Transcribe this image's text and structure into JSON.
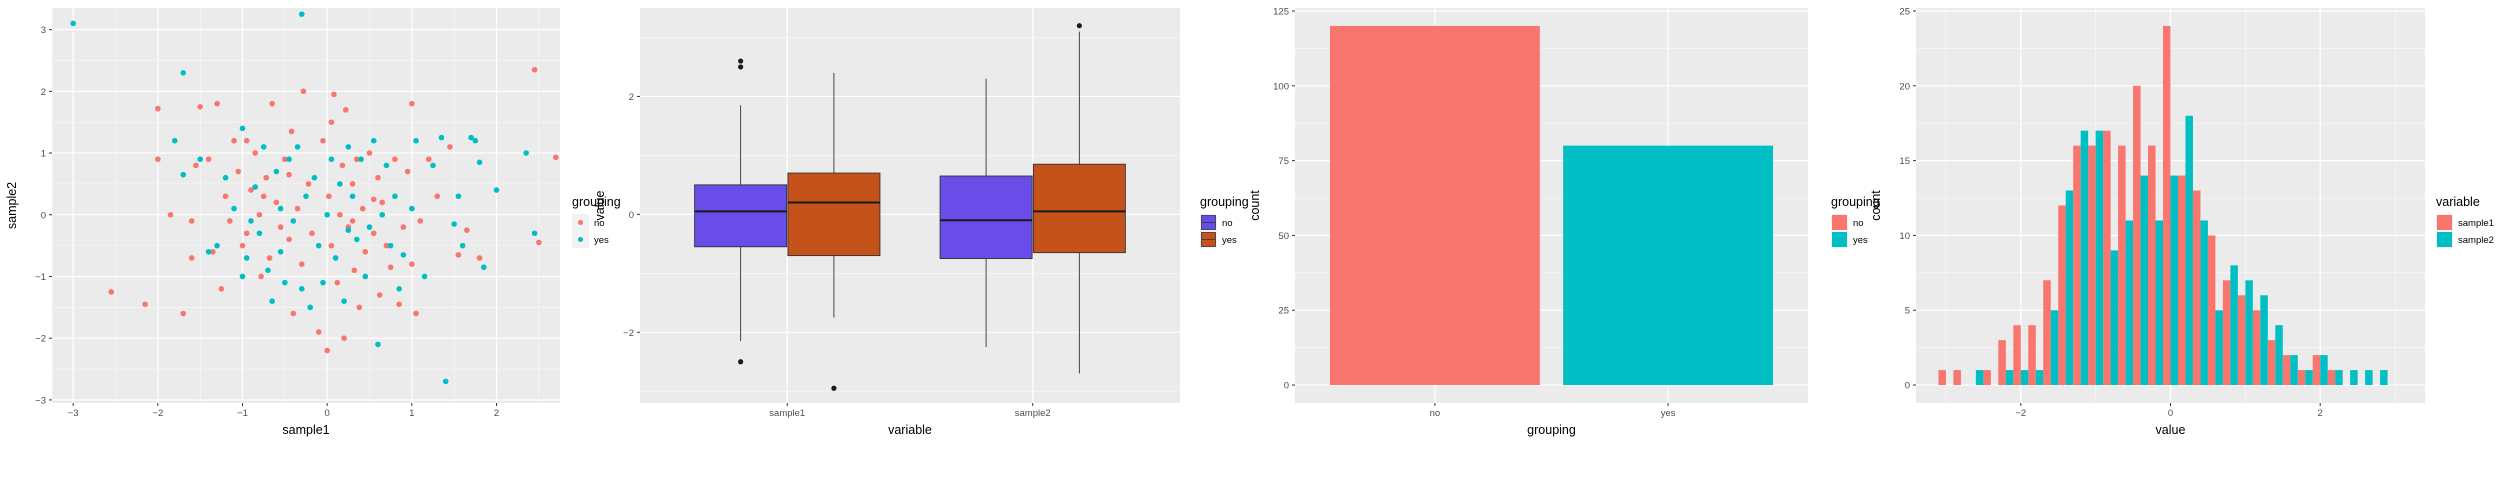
{
  "chart_data": [
    {
      "type": "scatter",
      "xlabel": "sample1",
      "ylabel": "sample2",
      "xlim": [
        -3.25,
        2.75
      ],
      "ylim": [
        -3.05,
        3.35
      ],
      "x_ticks": [
        -3,
        -2,
        -1,
        0,
        1,
        2
      ],
      "y_ticks": [
        -3,
        -2,
        -1,
        0,
        1,
        2,
        3
      ],
      "legend_title": "grouping",
      "legend_position": "right",
      "grid": true,
      "series": [
        {
          "name": "no",
          "color": "#F8766D",
          "points": [
            [
              -2.55,
              -1.25
            ],
            [
              -2.15,
              -1.45
            ],
            [
              -2.0,
              0.9
            ],
            [
              -2.0,
              1.72
            ],
            [
              -1.85,
              0.0
            ],
            [
              -1.7,
              -1.6
            ],
            [
              -1.6,
              -0.7
            ],
            [
              -1.55,
              0.8
            ],
            [
              -1.5,
              1.75
            ],
            [
              -1.4,
              0.9
            ],
            [
              -1.35,
              -0.6
            ],
            [
              -1.3,
              1.8
            ],
            [
              -1.25,
              -1.2
            ],
            [
              -1.2,
              0.3
            ],
            [
              -1.15,
              -0.1
            ],
            [
              -1.1,
              1.2
            ],
            [
              -1.05,
              0.7
            ],
            [
              -1.0,
              -0.5
            ],
            [
              -0.95,
              -0.3
            ],
            [
              -0.9,
              0.4
            ],
            [
              -0.85,
              1.0
            ],
            [
              -0.8,
              0.0
            ],
            [
              -0.78,
              -1.0
            ],
            [
              -0.72,
              0.6
            ],
            [
              -0.68,
              -0.7
            ],
            [
              -0.65,
              1.8
            ],
            [
              -0.6,
              0.2
            ],
            [
              -0.55,
              -0.2
            ],
            [
              -0.5,
              0.9
            ],
            [
              -0.45,
              -0.4
            ],
            [
              -0.42,
              1.35
            ],
            [
              -0.4,
              -1.6
            ],
            [
              -0.35,
              0.1
            ],
            [
              -0.3,
              -0.8
            ],
            [
              -0.28,
              2.0
            ],
            [
              -0.22,
              0.5
            ],
            [
              -0.18,
              -0.3
            ],
            [
              -0.1,
              -1.9
            ],
            [
              -0.05,
              1.2
            ],
            [
              0.0,
              -2.2
            ],
            [
              0.02,
              0.3
            ],
            [
              0.05,
              -0.5
            ],
            [
              0.08,
              1.95
            ],
            [
              0.12,
              -1.1
            ],
            [
              0.15,
              0.0
            ],
            [
              0.18,
              0.8
            ],
            [
              0.2,
              -2.0
            ],
            [
              0.22,
              1.7
            ],
            [
              0.25,
              -0.2
            ],
            [
              0.3,
              0.5
            ],
            [
              0.32,
              -0.9
            ],
            [
              0.35,
              0.9
            ],
            [
              0.38,
              -1.5
            ],
            [
              0.42,
              0.1
            ],
            [
              0.45,
              -0.6
            ],
            [
              0.5,
              1.0
            ],
            [
              0.55,
              -0.3
            ],
            [
              0.6,
              0.6
            ],
            [
              0.62,
              -1.3
            ],
            [
              0.65,
              0.2
            ],
            [
              0.7,
              -0.5
            ],
            [
              0.75,
              -0.85
            ],
            [
              0.8,
              0.9
            ],
            [
              0.85,
              -1.45
            ],
            [
              0.9,
              -0.2
            ],
            [
              0.95,
              0.7
            ],
            [
              1.0,
              1.8
            ],
            [
              1.05,
              -1.6
            ],
            [
              1.1,
              -0.1
            ],
            [
              1.2,
              0.9
            ],
            [
              1.3,
              0.3
            ],
            [
              1.45,
              1.1
            ],
            [
              1.55,
              -0.65
            ],
            [
              1.65,
              -0.25
            ],
            [
              1.8,
              -0.7
            ],
            [
              2.45,
              2.35
            ],
            [
              2.5,
              -0.45
            ],
            [
              2.7,
              0.93
            ],
            [
              -0.75,
              0.3
            ],
            [
              0.3,
              -0.1
            ],
            [
              -1.6,
              -0.1
            ],
            [
              1.0,
              -0.8
            ],
            [
              0.55,
              0.25
            ],
            [
              -0.45,
              0.65
            ],
            [
              0.05,
              1.5
            ],
            [
              -0.95,
              1.2
            ]
          ]
        },
        {
          "name": "yes",
          "color": "#00BFC4",
          "points": [
            [
              -3.0,
              3.1
            ],
            [
              -0.3,
              3.25
            ],
            [
              -1.7,
              2.3
            ],
            [
              -1.8,
              1.2
            ],
            [
              -1.7,
              0.65
            ],
            [
              -1.5,
              0.9
            ],
            [
              -1.4,
              -0.6
            ],
            [
              -1.3,
              -0.5
            ],
            [
              -1.2,
              0.6
            ],
            [
              -1.1,
              0.1
            ],
            [
              -1.0,
              1.4
            ],
            [
              -0.95,
              -0.7
            ],
            [
              -0.9,
              -0.1
            ],
            [
              -0.85,
              0.45
            ],
            [
              -0.8,
              -0.3
            ],
            [
              -0.75,
              1.1
            ],
            [
              -0.7,
              -0.9
            ],
            [
              -0.65,
              -1.4
            ],
            [
              -0.6,
              0.7
            ],
            [
              -0.55,
              -0.6
            ],
            [
              -0.5,
              -1.1
            ],
            [
              -0.45,
              0.9
            ],
            [
              -0.4,
              -0.1
            ],
            [
              -0.35,
              1.1
            ],
            [
              -0.3,
              -1.2
            ],
            [
              -0.25,
              0.3
            ],
            [
              -0.2,
              -1.5
            ],
            [
              -0.15,
              0.6
            ],
            [
              -0.1,
              -0.5
            ],
            [
              -0.05,
              -1.1
            ],
            [
              0.0,
              0.0
            ],
            [
              0.05,
              0.9
            ],
            [
              0.1,
              -0.7
            ],
            [
              0.15,
              0.5
            ],
            [
              0.2,
              -1.4
            ],
            [
              0.25,
              1.1
            ],
            [
              0.3,
              0.3
            ],
            [
              0.35,
              -0.4
            ],
            [
              0.4,
              0.9
            ],
            [
              0.45,
              -1.0
            ],
            [
              0.5,
              -0.2
            ],
            [
              0.55,
              1.2
            ],
            [
              0.6,
              -2.1
            ],
            [
              0.65,
              0.0
            ],
            [
              0.7,
              0.8
            ],
            [
              0.75,
              -0.5
            ],
            [
              0.8,
              0.3
            ],
            [
              0.85,
              -1.2
            ],
            [
              0.9,
              -0.65
            ],
            [
              1.0,
              0.1
            ],
            [
              1.05,
              1.2
            ],
            [
              1.15,
              -1.0
            ],
            [
              1.25,
              0.8
            ],
            [
              1.35,
              1.25
            ],
            [
              1.4,
              -2.7
            ],
            [
              1.5,
              -0.15
            ],
            [
              1.55,
              0.3
            ],
            [
              1.6,
              -0.5
            ],
            [
              1.7,
              1.25
            ],
            [
              1.75,
              1.2
            ],
            [
              1.85,
              -0.85
            ],
            [
              1.8,
              0.85
            ],
            [
              2.0,
              0.4
            ],
            [
              2.35,
              1.0
            ],
            [
              2.45,
              -0.3
            ],
            [
              -1.0,
              -1.0
            ],
            [
              0.25,
              -0.25
            ],
            [
              -0.55,
              0.1
            ]
          ]
        }
      ]
    },
    {
      "type": "box",
      "xlabel": "variable",
      "ylabel": "value",
      "categories": [
        "sample1",
        "sample2"
      ],
      "ylim": [
        -3.2,
        3.5
      ],
      "y_ticks": [
        -2,
        0,
        2
      ],
      "legend_title": "grouping",
      "legend_position": "right",
      "grid": true,
      "series": [
        {
          "name": "no",
          "color": "#6A4DE8"
        },
        {
          "name": "yes",
          "color": "#C4521A"
        }
      ],
      "boxes": [
        {
          "category": "sample1",
          "group": "no",
          "min": -2.15,
          "q1": -0.55,
          "median": 0.05,
          "q3": 0.5,
          "max": 1.85,
          "outliers": [
            2.6,
            2.5,
            -2.5
          ]
        },
        {
          "category": "sample1",
          "group": "yes",
          "min": -1.75,
          "q1": -0.7,
          "median": 0.2,
          "q3": 0.7,
          "max": 2.4,
          "outliers": [
            -2.95
          ]
        },
        {
          "category": "sample2",
          "group": "no",
          "min": -2.25,
          "q1": -0.75,
          "median": -0.1,
          "q3": 0.65,
          "max": 2.3,
          "outliers": []
        },
        {
          "category": "sample2",
          "group": "yes",
          "min": -2.7,
          "q1": -0.65,
          "median": 0.05,
          "q3": 0.85,
          "max": 3.1,
          "outliers": [
            3.2
          ]
        }
      ]
    },
    {
      "type": "bar",
      "xlabel": "grouping",
      "ylabel": "count",
      "categories": [
        "no",
        "yes"
      ],
      "values": [
        120,
        80
      ],
      "colors": [
        "#F8766D",
        "#00BFC4"
      ],
      "ylim": [
        -6,
        126
      ],
      "y_ticks": [
        0,
        25,
        50,
        75,
        100,
        125
      ],
      "legend_title": "grouping",
      "legend_position": "right",
      "grid": true
    },
    {
      "type": "histogram",
      "xlabel": "value",
      "ylabel": "count",
      "bin_centers": [
        -3.0,
        -2.8,
        -2.6,
        -2.4,
        -2.2,
        -2.0,
        -1.8,
        -1.6,
        -1.4,
        -1.2,
        -1.0,
        -0.8,
        -0.6,
        -0.4,
        -0.2,
        0.0,
        0.2,
        0.4,
        0.6,
        0.8,
        1.0,
        1.2,
        1.4,
        1.6,
        1.8,
        2.0,
        2.2,
        2.4,
        2.6,
        2.8,
        3.0
      ],
      "xlim": [
        -3.4,
        3.4
      ],
      "ylim": [
        -1.2,
        25.2
      ],
      "x_ticks": [
        -2,
        0,
        2
      ],
      "y_ticks": [
        0,
        5,
        10,
        15,
        20,
        25
      ],
      "legend_title": "variable",
      "legend_position": "right",
      "grid": true,
      "series": [
        {
          "name": "sample1",
          "color": "#F8766D",
          "values": [
            1,
            1,
            0,
            1,
            3,
            4,
            4,
            7,
            12,
            16,
            16,
            17,
            16,
            20,
            16,
            24,
            14,
            13,
            10,
            7,
            6,
            5,
            3,
            2,
            1,
            2,
            1,
            0,
            0,
            0,
            0
          ]
        },
        {
          "name": "sample2",
          "color": "#00BFC4",
          "values": [
            0,
            0,
            1,
            0,
            1,
            1,
            1,
            5,
            13,
            17,
            17,
            9,
            11,
            14,
            11,
            14,
            18,
            11,
            5,
            8,
            7,
            6,
            4,
            2,
            1,
            2,
            1,
            1,
            1,
            1,
            0
          ]
        }
      ]
    }
  ]
}
